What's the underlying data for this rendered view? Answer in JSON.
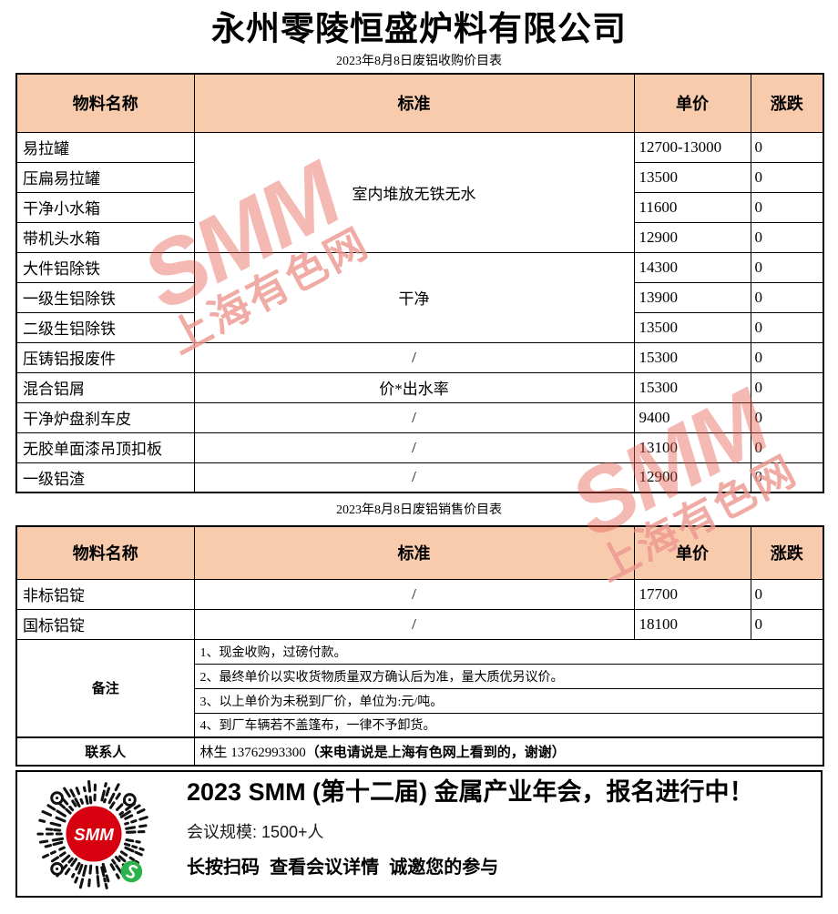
{
  "page": {
    "company_title": "永州零陵恒盛炉料有限公司"
  },
  "colors": {
    "header_fill": "#F8CBAD",
    "border": "#000000",
    "watermark_red": "#E4574B",
    "qr_red": "#D7000F",
    "qr_green": "#2BB24C"
  },
  "watermark": {
    "brand": "SMM",
    "site": "上海有色网"
  },
  "purchase": {
    "subtitle": "2023年8月8日废铝收购价目表",
    "headers": {
      "material": "物料名称",
      "standard": "标准",
      "price": "单价",
      "change": "涨跌"
    },
    "standard_groups": [
      {
        "label": "室内堆放无铁无水"
      },
      {
        "label": "干净"
      }
    ],
    "rows": [
      {
        "material": "易拉罐",
        "price": "12700-13000",
        "change": "0"
      },
      {
        "material": "压扁易拉罐",
        "price": "13500",
        "change": "0"
      },
      {
        "material": "干净小水箱",
        "price": "11600",
        "change": "0"
      },
      {
        "material": "带机头水箱",
        "price": "12900",
        "change": "0"
      },
      {
        "material": "大件铝除铁",
        "price": "14300",
        "change": "0"
      },
      {
        "material": "一级生铝除铁",
        "price": "13900",
        "change": "0"
      },
      {
        "material": "二级生铝除铁",
        "price": "13500",
        "change": "0"
      },
      {
        "material": "压铸铝报废件",
        "standard": "/",
        "price": "15300",
        "change": "0"
      },
      {
        "material": "混合铝屑",
        "standard": "价*出水率",
        "price": "15300",
        "change": "0"
      },
      {
        "material": "干净炉盘刹车皮",
        "standard": "/",
        "price": "9400",
        "change": "0"
      },
      {
        "material": "无胶单面漆吊顶扣板",
        "standard": "/",
        "price": "13100",
        "change": "0"
      },
      {
        "material": "一级铝渣",
        "standard": "/",
        "price": "12900",
        "change": "0"
      }
    ]
  },
  "sales": {
    "subtitle": "2023年8月8日废铝销售价目表",
    "headers": {
      "material": "物料名称",
      "standard": "标准",
      "price": "单价",
      "change": "涨跌"
    },
    "rows": [
      {
        "material": "非标铝锭",
        "standard": "/",
        "price": "17700",
        "change": "0"
      },
      {
        "material": "国标铝锭",
        "standard": "/",
        "price": "18100",
        "change": "0"
      }
    ]
  },
  "remarks": {
    "label": "备注",
    "items": [
      "1、现金收购，过磅付款。",
      "2、最终单价以实收货物质量双方确认后为准，量大质优另议价。",
      "3、以上单价为未税到厂价，单位为:元/吨。",
      "4、到厂车辆若不盖篷布，一律不予卸货。"
    ]
  },
  "contact": {
    "label": "联系人",
    "value": "林生 13762993300",
    "note": "（来电请说是上海有色网上看到的，谢谢）"
  },
  "banner": {
    "title": "2023 SMM (第十二届) 金属产业年会，报名进行中！",
    "scale": "会议规模: 1500+人",
    "cta": "长按扫码  查看会议详情  诚邀您的参与",
    "qr_label": "SMM"
  }
}
